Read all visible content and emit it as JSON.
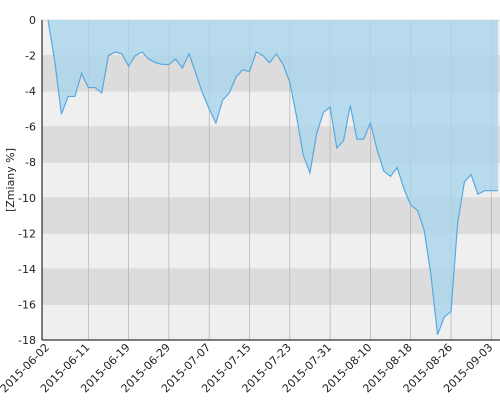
{
  "chart_data": {
    "type": "area",
    "y_label": "[Zmiany %]",
    "categories": [
      "2015-06-02",
      null,
      null,
      null,
      null,
      null,
      "2015-06-11",
      null,
      null,
      null,
      null,
      null,
      "2015-06-19",
      null,
      null,
      null,
      null,
      null,
      "2015-06-29",
      null,
      null,
      null,
      null,
      null,
      "2015-07-07",
      null,
      null,
      null,
      null,
      null,
      "2015-07-15",
      null,
      null,
      null,
      null,
      null,
      "2015-07-23",
      null,
      null,
      null,
      null,
      null,
      "2015-07-31",
      null,
      null,
      null,
      null,
      null,
      "2015-08-10",
      null,
      null,
      null,
      null,
      null,
      "2015-08-18",
      null,
      null,
      null,
      null,
      null,
      "2015-08-26",
      null,
      null,
      null,
      null,
      null,
      "2015-09-03",
      null
    ],
    "values": [
      0,
      -2.3,
      -5.3,
      -4.3,
      -4.3,
      -3.0,
      -3.8,
      -3.8,
      -4.1,
      -2.0,
      -1.8,
      -1.9,
      -2.6,
      -2.0,
      -1.8,
      -2.2,
      -2.4,
      -2.5,
      -2.5,
      -2.2,
      -2.7,
      -1.9,
      -3.0,
      -4.1,
      -5.0,
      -5.8,
      -4.5,
      -4.1,
      -3.2,
      -2.8,
      -2.9,
      -1.8,
      -2.0,
      -2.4,
      -1.9,
      -2.5,
      -3.5,
      -5.4,
      -7.6,
      -8.6,
      -6.4,
      -5.2,
      -4.9,
      -7.2,
      -6.8,
      -4.8,
      -6.7,
      -6.7,
      -5.8,
      -7.3,
      -8.5,
      -8.8,
      -8.3,
      -9.5,
      -10.4,
      -10.7,
      -11.8,
      -14.3,
      -17.7,
      -16.7,
      -16.4,
      -11.4,
      -9.1,
      -8.7,
      -9.8,
      -9.6,
      -9.6,
      -9.6
    ],
    "color": "#5aa8e0",
    "fill": "#a9d6ec",
    "ylim": [
      -18,
      0
    ],
    "yticks": [
      0,
      -2,
      -4,
      -6,
      -8,
      -10,
      -12,
      -14,
      -16,
      -18
    ],
    "grid": true
  }
}
